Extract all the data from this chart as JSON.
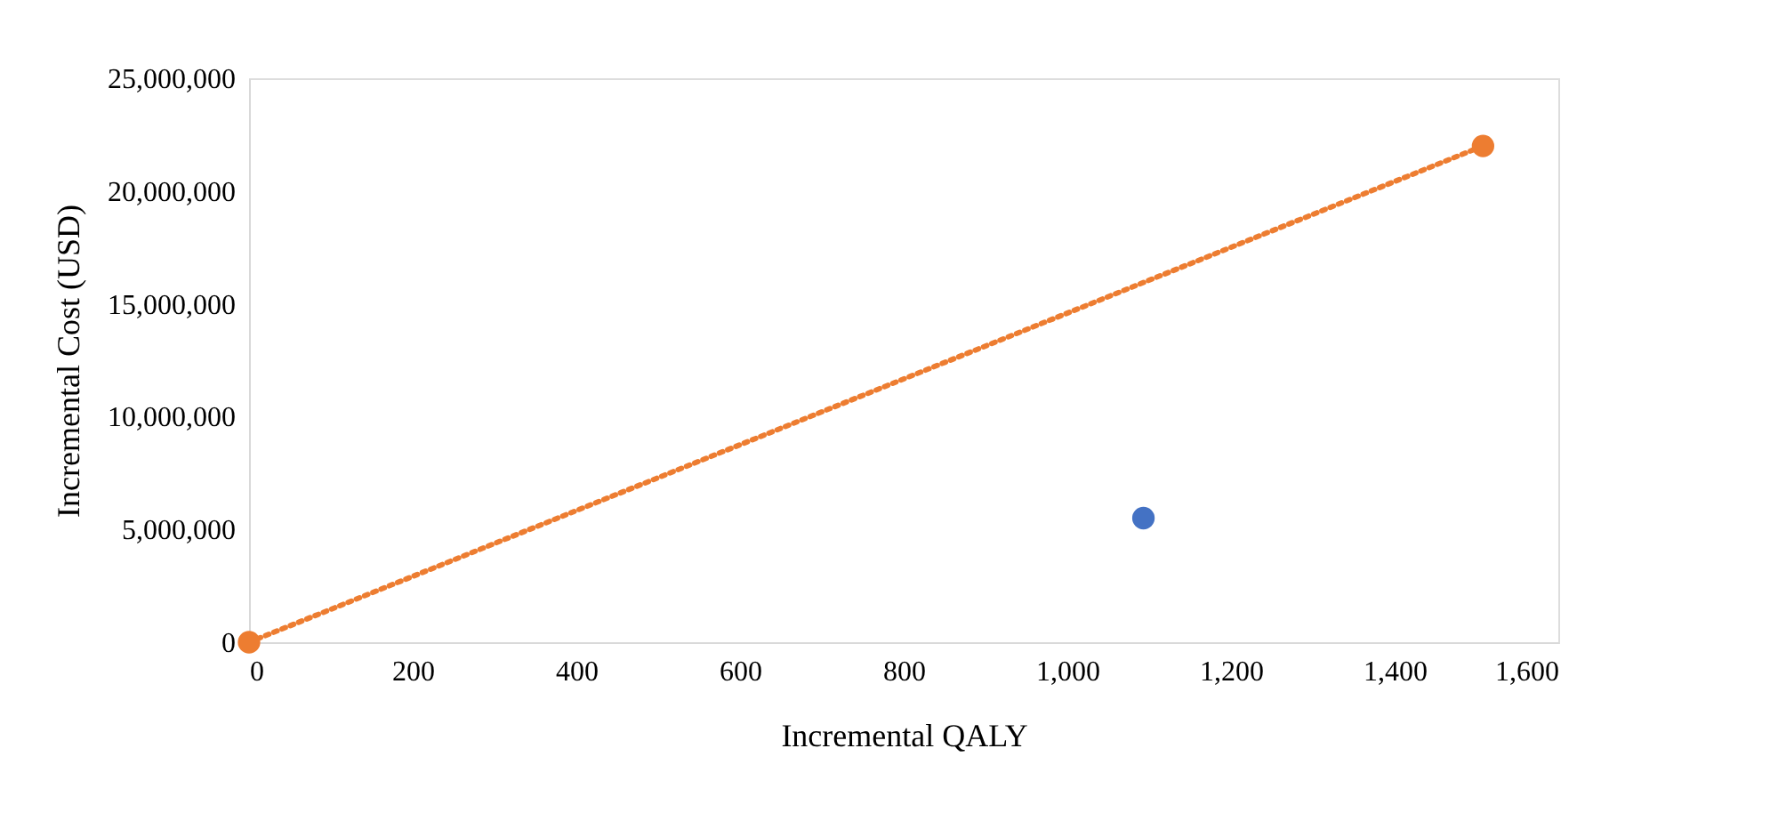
{
  "chart_data": {
    "type": "scatter",
    "xlabel": "Incremental QALY",
    "ylabel": "Incremental Cost (USD)",
    "series": [
      {
        "color": "#4472c4",
        "x": [
          1093
        ],
        "values": [
          5500000
        ],
        "marker": "circle"
      },
      {
        "type": "line",
        "color": "#ed7d31",
        "x": [
          0,
          1508
        ],
        "values": [
          0,
          22000000
        ],
        "marker": "circle",
        "line_style": "dotted"
      }
    ],
    "xlim": [
      0,
      1600
    ],
    "ylim": [
      0,
      25000000
    ],
    "xticks": [
      0,
      200,
      400,
      600,
      800,
      {
        "value": 1000,
        "label": "1,000"
      },
      {
        "value": 1200,
        "label": "1,200"
      },
      {
        "value": 1400,
        "label": "1,400"
      },
      {
        "value": 1600,
        "label": "1,600"
      }
    ],
    "yticks": [
      0,
      {
        "value": 5000000,
        "label": "5,000,000"
      },
      {
        "value": 10000000,
        "label": "10,000,000"
      },
      {
        "value": 15000000,
        "label": "15,000,000"
      },
      {
        "value": 20000000,
        "label": "20,000,000"
      },
      {
        "value": 25000000,
        "label": "25,000,000"
      }
    ],
    "grid": false,
    "legend": false
  }
}
